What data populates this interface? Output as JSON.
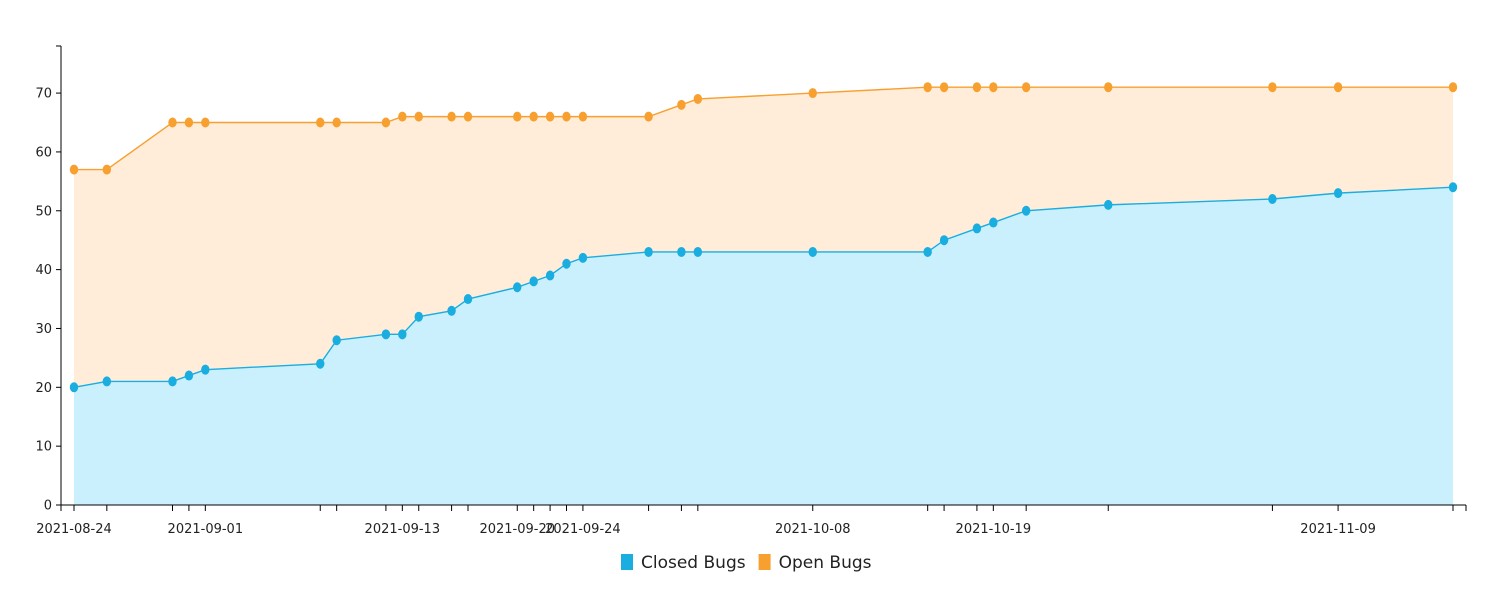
{
  "chart_data": {
    "type": "area",
    "title": "",
    "xlabel": "",
    "ylabel": "",
    "ylim": [
      0,
      78
    ],
    "y_ticks": [
      0,
      10,
      20,
      30,
      40,
      50,
      60,
      70
    ],
    "x_tick_labels": [
      "2021-08-24",
      "2021-09-01",
      "2021-09-13",
      "2021-09-20",
      "2021-09-24",
      "2021-10-08",
      "2021-10-19",
      "2021-11-09"
    ],
    "x": [
      "2021-08-24",
      "2021-08-26",
      "2021-08-30",
      "2021-08-31",
      "2021-09-01",
      "2021-09-08",
      "2021-09-09",
      "2021-09-12",
      "2021-09-13",
      "2021-09-14",
      "2021-09-16",
      "2021-09-17",
      "2021-09-20",
      "2021-09-21",
      "2021-09-22",
      "2021-09-23",
      "2021-09-24",
      "2021-09-28",
      "2021-09-30",
      "2021-10-01",
      "2021-10-08",
      "2021-10-15",
      "2021-10-16",
      "2021-10-18",
      "2021-10-19",
      "2021-10-21",
      "2021-10-26",
      "2021-11-05",
      "2021-11-09",
      "2021-11-16"
    ],
    "series": [
      {
        "name": "Closed Bugs",
        "color": "#1aade0",
        "fill": "#caf0fe",
        "values": [
          20,
          21,
          21,
          22,
          23,
          24,
          28,
          29,
          29,
          32,
          33,
          35,
          37,
          38,
          39,
          41,
          42,
          43,
          43,
          43,
          43,
          43,
          45,
          47,
          48,
          50,
          51,
          52,
          53,
          54
        ]
      },
      {
        "name": "Open Bugs",
        "color": "#f7a030",
        "fill": "#ffedd9",
        "values": [
          57,
          57,
          65,
          65,
          65,
          65,
          65,
          65,
          66,
          66,
          66,
          66,
          66,
          66,
          66,
          66,
          66,
          66,
          68,
          69,
          70,
          71,
          71,
          71,
          71,
          71,
          71,
          71,
          71,
          71
        ]
      }
    ],
    "legend_position": "bottom-center",
    "grid": false
  }
}
